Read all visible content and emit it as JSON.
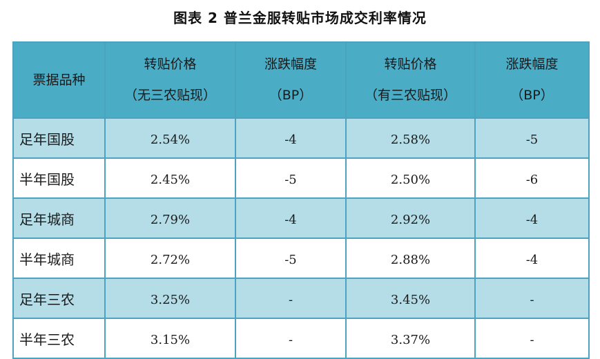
{
  "title": "图表 2  普兰金服转贴市场成交利率情况",
  "table": {
    "headers": [
      {
        "line1": "票据品种",
        "line2": ""
      },
      {
        "line1": "转贴价格",
        "line2": "（无三农贴现）"
      },
      {
        "line1": "涨跌幅度",
        "line2": "（BP）"
      },
      {
        "line1": "转贴价格",
        "line2": "（有三农贴现）"
      },
      {
        "line1": "涨跌幅度",
        "line2": "（BP）"
      }
    ],
    "rows": [
      {
        "variety": "足年国股",
        "price_no": "2.54%",
        "change_no": "-4",
        "price_with": "2.58%",
        "change_with": "-5"
      },
      {
        "variety": "半年国股",
        "price_no": "2.45%",
        "change_no": "-5",
        "price_with": "2.50%",
        "change_with": "-6"
      },
      {
        "variety": "足年城商",
        "price_no": "2.79%",
        "change_no": "-4",
        "price_with": "2.92%",
        "change_with": "-4"
      },
      {
        "variety": "半年城商",
        "price_no": "2.72%",
        "change_no": "-5",
        "price_with": "2.88%",
        "change_with": "-4"
      },
      {
        "variety": "足年三农",
        "price_no": "3.25%",
        "change_no": "-",
        "price_with": "3.45%",
        "change_with": "-"
      },
      {
        "variety": "半年三农",
        "price_no": "3.15%",
        "change_no": "-",
        "price_with": "3.37%",
        "change_with": "-"
      }
    ]
  },
  "colors": {
    "header_bg": "#4bacc6",
    "row_light_bg": "#b4dde8",
    "border": "#4ba3c0"
  }
}
